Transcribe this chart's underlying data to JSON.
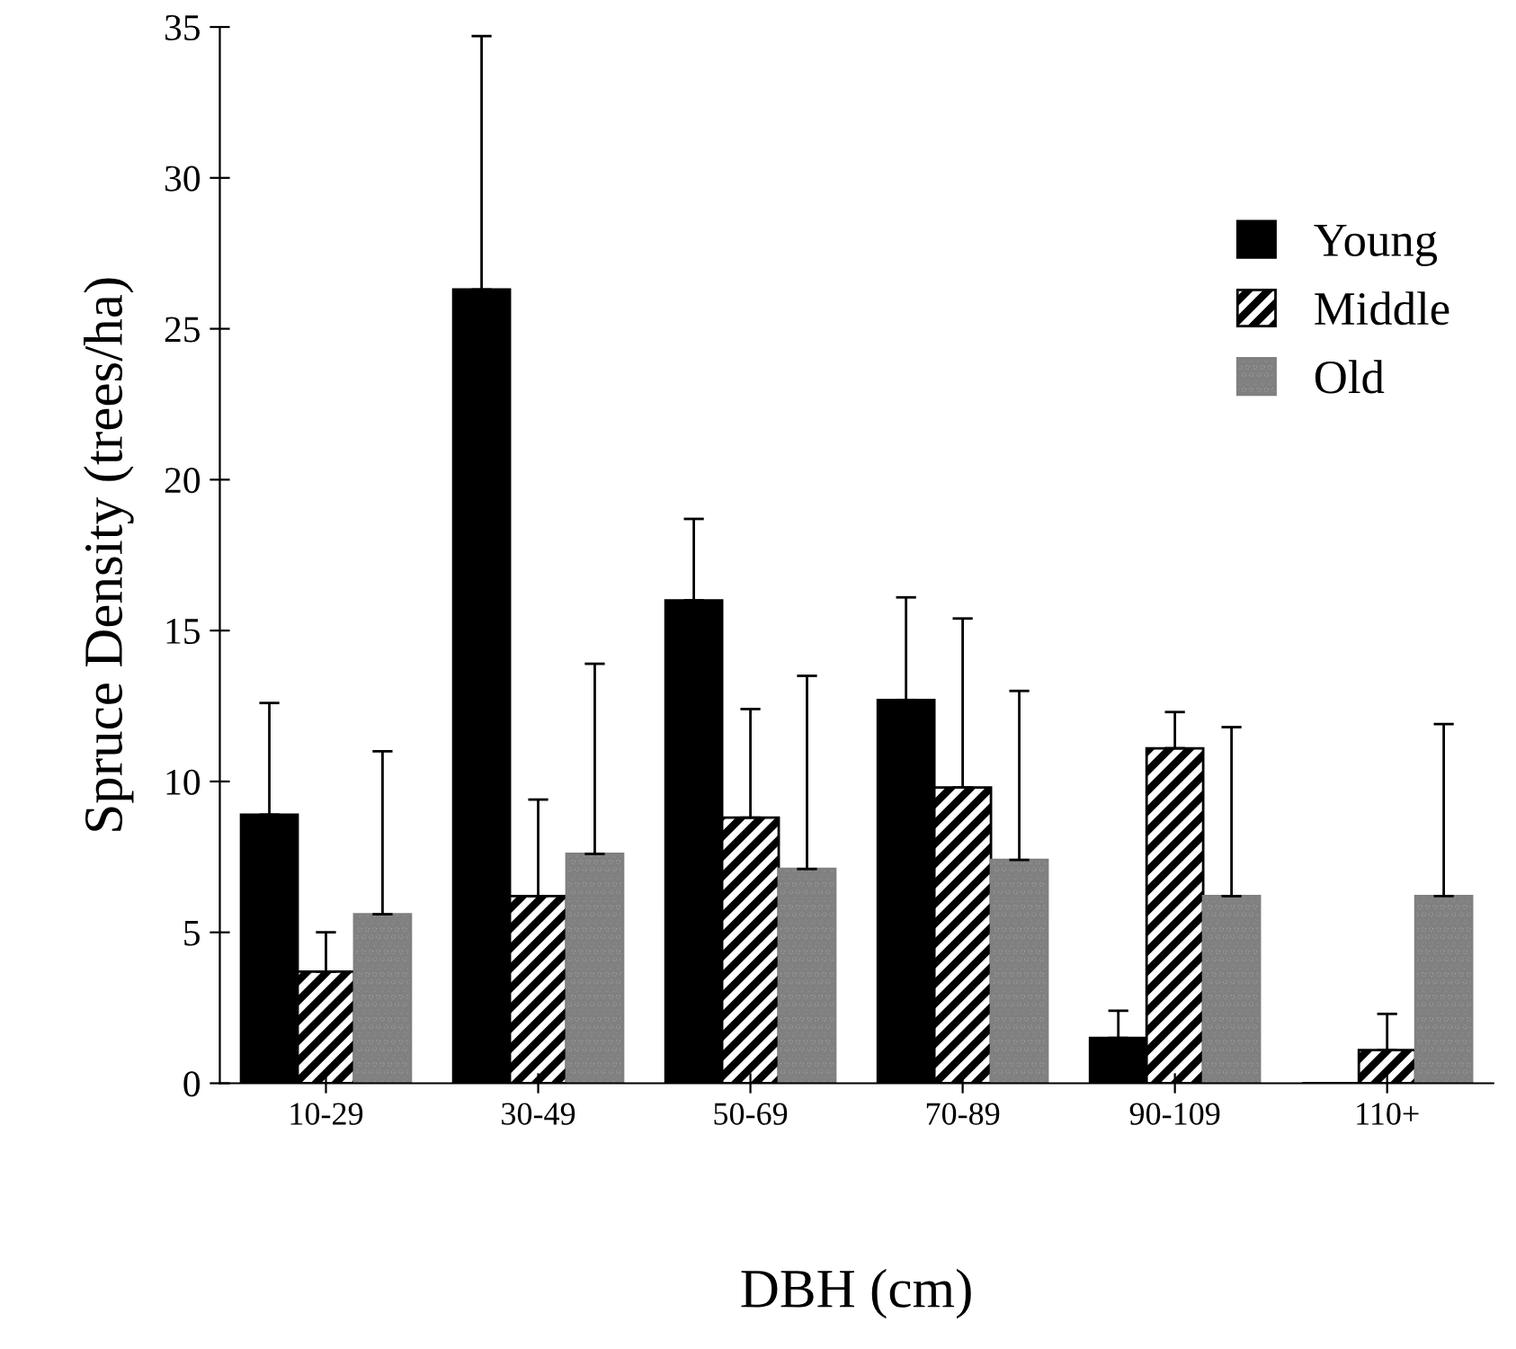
{
  "chart_data": {
    "type": "bar",
    "xlabel": "DBH (cm)",
    "ylabel": "Spruce Density (trees/ha)",
    "categories": [
      "10-29",
      "30-49",
      "50-69",
      "70-89",
      "90-109",
      "110+"
    ],
    "series": [
      {
        "name": "Young",
        "color": "#000000",
        "values": [
          8.9,
          26.3,
          16.0,
          12.7,
          1.5,
          0
        ],
        "errors": [
          [
            8.9,
            12.6
          ],
          [
            26.3,
            34.7
          ],
          [
            16.0,
            18.7
          ],
          [
            12.7,
            16.1
          ],
          [
            1.5,
            2.4
          ],
          null
        ]
      },
      {
        "name": "Middle",
        "color": "#000000",
        "values": [
          3.7,
          6.2,
          8.8,
          9.8,
          11.1,
          1.1
        ],
        "errors": [
          [
            3.7,
            5.0
          ],
          [
            6.2,
            9.4
          ],
          [
            8.8,
            12.4
          ],
          [
            9.8,
            15.4
          ],
          [
            11.1,
            12.3
          ],
          [
            1.1,
            2.3
          ]
        ]
      },
      {
        "name": "Old",
        "color": "#808080",
        "values": [
          5.6,
          7.6,
          7.1,
          7.4,
          6.2,
          6.2
        ],
        "errors": [
          [
            5.6,
            11.0
          ],
          [
            7.6,
            13.9
          ],
          [
            7.1,
            13.5
          ],
          [
            7.4,
            13.0
          ],
          [
            6.2,
            11.8
          ],
          [
            6.2,
            11.9
          ]
        ]
      }
    ],
    "ylim": [
      0,
      35
    ],
    "yticks": [
      0,
      5,
      10,
      15,
      20,
      25,
      30,
      35
    ],
    "grid": false,
    "legend": "right"
  }
}
